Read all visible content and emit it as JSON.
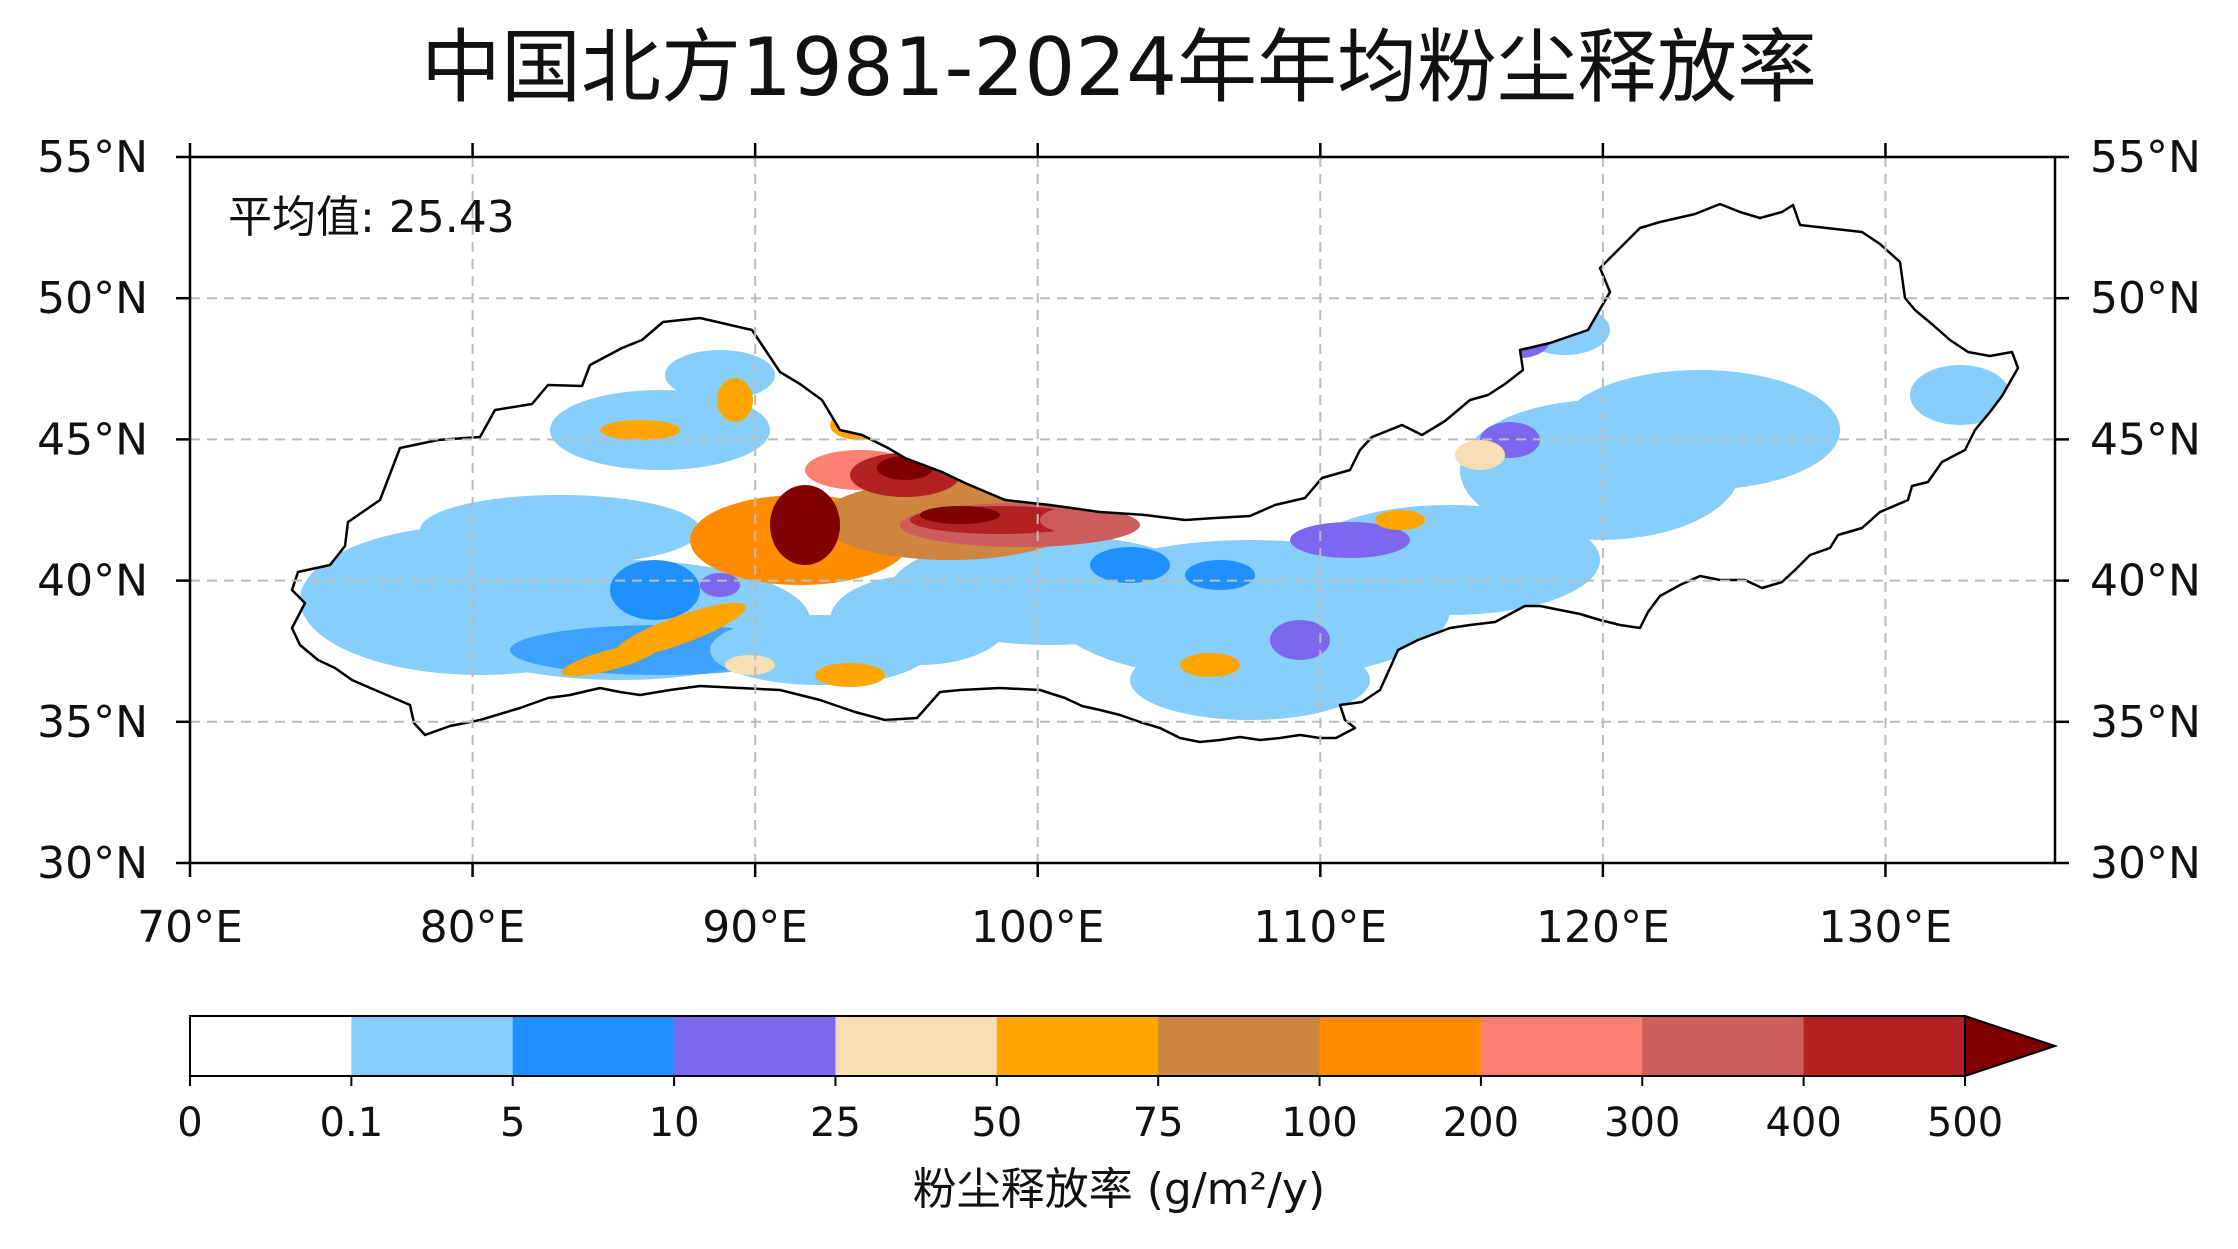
{
  "title": "中国北方1981-2024年年均粉尘释放率",
  "annotation": {
    "mean_label": "平均值: 25.43"
  },
  "map": {
    "lon_ticks": [
      "70°E",
      "80°E",
      "90°E",
      "100°E",
      "110°E",
      "120°E",
      "130°E"
    ],
    "lat_ticks": [
      "55°N",
      "50°N",
      "45°N",
      "40°N",
      "35°N",
      "30°N"
    ],
    "lon_range": [
      70,
      136
    ],
    "lat_range": [
      30,
      55
    ],
    "grid": true
  },
  "colorbar": {
    "label": "粉尘释放率 (g/m²/y)",
    "tick_labels": [
      "0",
      "0.1",
      "5",
      "10",
      "25",
      "50",
      "75",
      "100",
      "200",
      "300",
      "400",
      "500"
    ],
    "colors": [
      "#ffffff",
      "#87cefa",
      "#1e90ff",
      "#7b68ee",
      "#f5deb3",
      "#ffa500",
      "#cd853f",
      "#ff8c00",
      "#fa8072",
      "#cd5c5c",
      "#b22222"
    ],
    "extend_color": "#800000",
    "extend": "max"
  },
  "colors": {
    "gridline": "#bbbbbb",
    "boundary": "#000000",
    "tan": "#f5deb3"
  }
}
